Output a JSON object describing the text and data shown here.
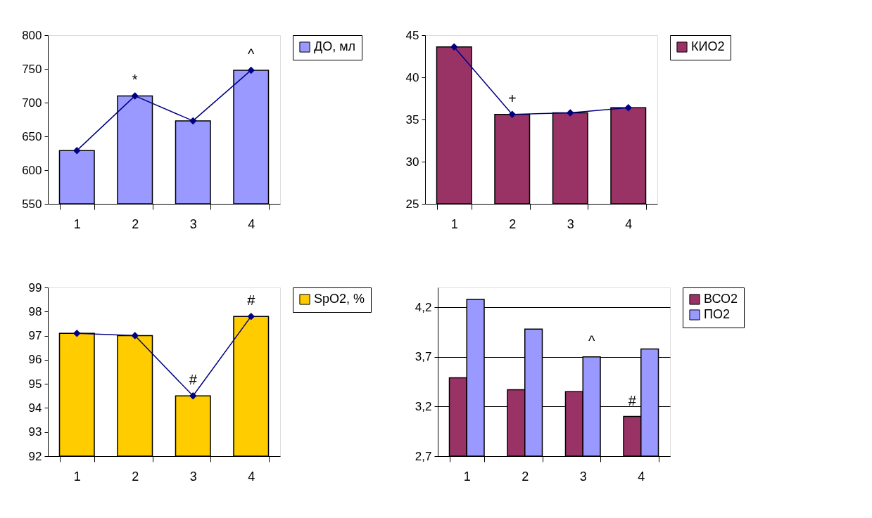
{
  "chart_data": [
    {
      "type": "bar",
      "categories": [
        "1",
        "2",
        "3",
        "4"
      ],
      "ylim": [
        550,
        800
      ],
      "yticks": [
        550,
        600,
        650,
        700,
        750,
        800
      ],
      "grid": false,
      "legend": "right",
      "marker": "diamond",
      "series": [
        {
          "name": "ДО, мл",
          "color": "#9999ff",
          "values": [
            629,
            710,
            673,
            748
          ]
        },
        {
          "type": "line",
          "color": "#000080",
          "values": [
            629,
            710,
            673,
            748
          ]
        }
      ],
      "annotations": [
        {
          "text": "*",
          "x": "2",
          "y": 710
        },
        {
          "text": "^",
          "x": "4",
          "y": 748
        }
      ]
    },
    {
      "type": "bar",
      "categories": [
        "1",
        "2",
        "3",
        "4"
      ],
      "ylim": [
        25,
        45
      ],
      "yticks": [
        25,
        30,
        35,
        40,
        45
      ],
      "grid": false,
      "legend": "right",
      "marker": "diamond",
      "series": [
        {
          "name": "КИО2",
          "color": "#993366",
          "values": [
            43.6,
            35.6,
            35.8,
            36.4
          ]
        },
        {
          "type": "line",
          "color": "#000080",
          "values": [
            43.6,
            35.6,
            35.8,
            36.4
          ]
        }
      ],
      "annotations": [
        {
          "text": "+",
          "x": "2",
          "y": 35.6
        }
      ]
    },
    {
      "type": "bar",
      "categories": [
        "1",
        "2",
        "3",
        "4"
      ],
      "ylim": [
        92,
        99
      ],
      "yticks": [
        92,
        93,
        94,
        95,
        96,
        97,
        98,
        99
      ],
      "grid": false,
      "legend": "right",
      "marker": "diamond",
      "series": [
        {
          "name": "SpO2, %",
          "color": "#ffcc00",
          "values": [
            97.1,
            97.0,
            94.5,
            97.8
          ]
        },
        {
          "type": "line",
          "color": "#000080",
          "values": [
            97.1,
            97.0,
            94.5,
            97.8
          ]
        }
      ],
      "annotations": [
        {
          "text": "#",
          "x": "3",
          "y": 94.5
        },
        {
          "text": "#",
          "x": "4",
          "y": 97.8
        }
      ]
    },
    {
      "type": "bar",
      "categories": [
        "1",
        "2",
        "3",
        "4"
      ],
      "ylim": [
        2.7,
        4.4
      ],
      "yticks": [
        {
          "value": 2.7,
          "label": "2,7"
        },
        {
          "value": 3.2,
          "label": "3,2"
        },
        {
          "value": 3.7,
          "label": "3,7"
        },
        {
          "value": 4.2,
          "label": "4,2"
        }
      ],
      "grid": "y",
      "legend": "right",
      "series": [
        {
          "name": "ВСО2",
          "color": "#993366",
          "values": [
            3.49,
            3.37,
            3.35,
            3.1
          ]
        },
        {
          "name": "ПО2",
          "color": "#9999ff",
          "values": [
            4.28,
            3.98,
            3.7,
            3.78
          ]
        }
      ],
      "annotations": [
        {
          "text": "^",
          "x": "3",
          "y": 3.7
        },
        {
          "text": "#",
          "x": "4",
          "y": 3.1
        }
      ]
    }
  ]
}
